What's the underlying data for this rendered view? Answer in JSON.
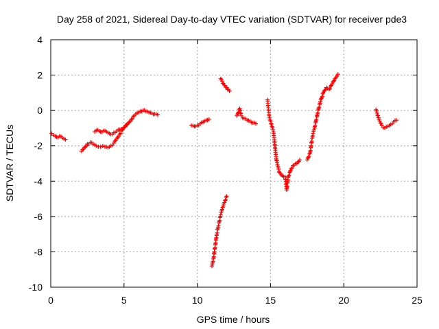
{
  "chart_data": {
    "type": "scatter",
    "title": "Day 258 of 2021, Sidereal Day-to-day VTEC variation (SDTVAR) for receiver pde3",
    "xlabel": "GPS time / hours",
    "ylabel": "SDTVAR / TECUs",
    "xlim": [
      0,
      25
    ],
    "ylim": [
      -10,
      4
    ],
    "xticks": [
      "0",
      "5",
      "10",
      "15",
      "20",
      "25"
    ],
    "yticks": [
      "-10",
      "-8",
      "-6",
      "-4",
      "-2",
      "0",
      "2",
      "4"
    ],
    "grid": true,
    "marker": "plus",
    "color": "#ff0000",
    "series": [
      {
        "segments": [
          [
            [
              0.05,
              -1.3
            ],
            [
              0.2,
              -1.4
            ],
            [
              0.4,
              -1.5
            ],
            [
              0.6,
              -1.45
            ],
            [
              0.8,
              -1.55
            ],
            [
              1.0,
              -1.65
            ]
          ],
          [
            [
              2.1,
              -2.3
            ],
            [
              2.3,
              -2.1
            ],
            [
              2.5,
              -1.9
            ],
            [
              2.7,
              -1.8
            ],
            [
              2.9,
              -1.9
            ],
            [
              3.1,
              -2.0
            ],
            [
              3.4,
              -2.05
            ],
            [
              3.7,
              -2.05
            ],
            [
              3.9,
              -2.1
            ],
            [
              4.1,
              -2.0
            ],
            [
              4.3,
              -1.85
            ],
            [
              4.5,
              -1.6
            ],
            [
              4.7,
              -1.35
            ],
            [
              4.9,
              -1.1
            ],
            [
              5.1,
              -0.9
            ],
            [
              5.3,
              -0.7
            ],
            [
              5.5,
              -0.5
            ],
            [
              5.7,
              -0.3
            ],
            [
              5.9,
              -0.15
            ],
            [
              6.1,
              -0.05
            ],
            [
              6.3,
              0.0
            ],
            [
              6.5,
              -0.05
            ],
            [
              6.7,
              -0.1
            ],
            [
              6.9,
              -0.15
            ],
            [
              7.1,
              -0.2
            ],
            [
              7.3,
              -0.25
            ]
          ],
          [
            [
              3.0,
              -1.2
            ],
            [
              3.2,
              -1.1
            ],
            [
              3.4,
              -1.2
            ],
            [
              3.6,
              -1.15
            ],
            [
              3.8,
              -1.2
            ],
            [
              4.0,
              -1.3
            ],
            [
              4.2,
              -1.35
            ],
            [
              4.4,
              -1.25
            ],
            [
              4.6,
              -1.1
            ],
            [
              4.8,
              -1.05
            ],
            [
              5.0,
              -0.95
            ],
            [
              5.2,
              -0.8
            ]
          ],
          [
            [
              9.6,
              -0.85
            ],
            [
              9.8,
              -0.9
            ],
            [
              10.0,
              -0.85
            ],
            [
              10.2,
              -0.75
            ],
            [
              10.4,
              -0.65
            ],
            [
              10.6,
              -0.55
            ],
            [
              10.8,
              -0.5
            ]
          ],
          [
            [
              11.0,
              -8.8
            ],
            [
              11.1,
              -8.4
            ],
            [
              11.2,
              -7.8
            ],
            [
              11.3,
              -7.2
            ],
            [
              11.4,
              -6.7
            ],
            [
              11.5,
              -6.3
            ],
            [
              11.6,
              -5.9
            ],
            [
              11.7,
              -5.6
            ],
            [
              11.8,
              -5.3
            ],
            [
              11.9,
              -5.1
            ],
            [
              12.0,
              -4.85
            ]
          ],
          [
            [
              11.6,
              1.8
            ],
            [
              11.8,
              1.5
            ],
            [
              12.0,
              1.3
            ],
            [
              12.2,
              1.1
            ]
          ],
          [
            [
              12.7,
              -0.3
            ],
            [
              12.9,
              0.1
            ],
            [
              13.0,
              -0.3
            ],
            [
              13.2,
              -0.45
            ],
            [
              13.4,
              -0.55
            ],
            [
              13.6,
              -0.6
            ],
            [
              13.8,
              -0.7
            ],
            [
              14.0,
              -0.75
            ]
          ],
          [
            [
              14.8,
              0.6
            ],
            [
              14.9,
              -0.3
            ],
            [
              15.0,
              -0.6
            ],
            [
              15.1,
              -0.9
            ],
            [
              15.2,
              -1.2
            ],
            [
              15.3,
              -2.0
            ],
            [
              15.4,
              -2.8
            ],
            [
              15.6,
              -3.5
            ],
            [
              15.8,
              -3.7
            ],
            [
              16.0,
              -3.75
            ],
            [
              16.1,
              -4.5
            ],
            [
              16.2,
              -3.8
            ],
            [
              16.4,
              -3.3
            ],
            [
              16.6,
              -3.1
            ],
            [
              16.8,
              -3.0
            ],
            [
              17.0,
              -2.8
            ]
          ],
          [
            [
              17.5,
              -2.8
            ],
            [
              17.7,
              -2.4
            ],
            [
              17.8,
              -1.8
            ],
            [
              17.9,
              -1.3
            ],
            [
              18.0,
              -1.0
            ],
            [
              18.2,
              -0.2
            ],
            [
              18.4,
              0.5
            ],
            [
              18.6,
              1.0
            ],
            [
              18.8,
              1.3
            ],
            [
              19.0,
              1.2
            ],
            [
              19.2,
              1.5
            ],
            [
              19.4,
              1.8
            ],
            [
              19.6,
              2.05
            ]
          ],
          [
            [
              22.2,
              0.05
            ],
            [
              22.4,
              -0.5
            ],
            [
              22.6,
              -0.85
            ],
            [
              22.8,
              -1.0
            ],
            [
              23.0,
              -0.9
            ],
            [
              23.2,
              -0.8
            ],
            [
              23.4,
              -0.65
            ],
            [
              23.6,
              -0.55
            ]
          ]
        ]
      }
    ]
  }
}
